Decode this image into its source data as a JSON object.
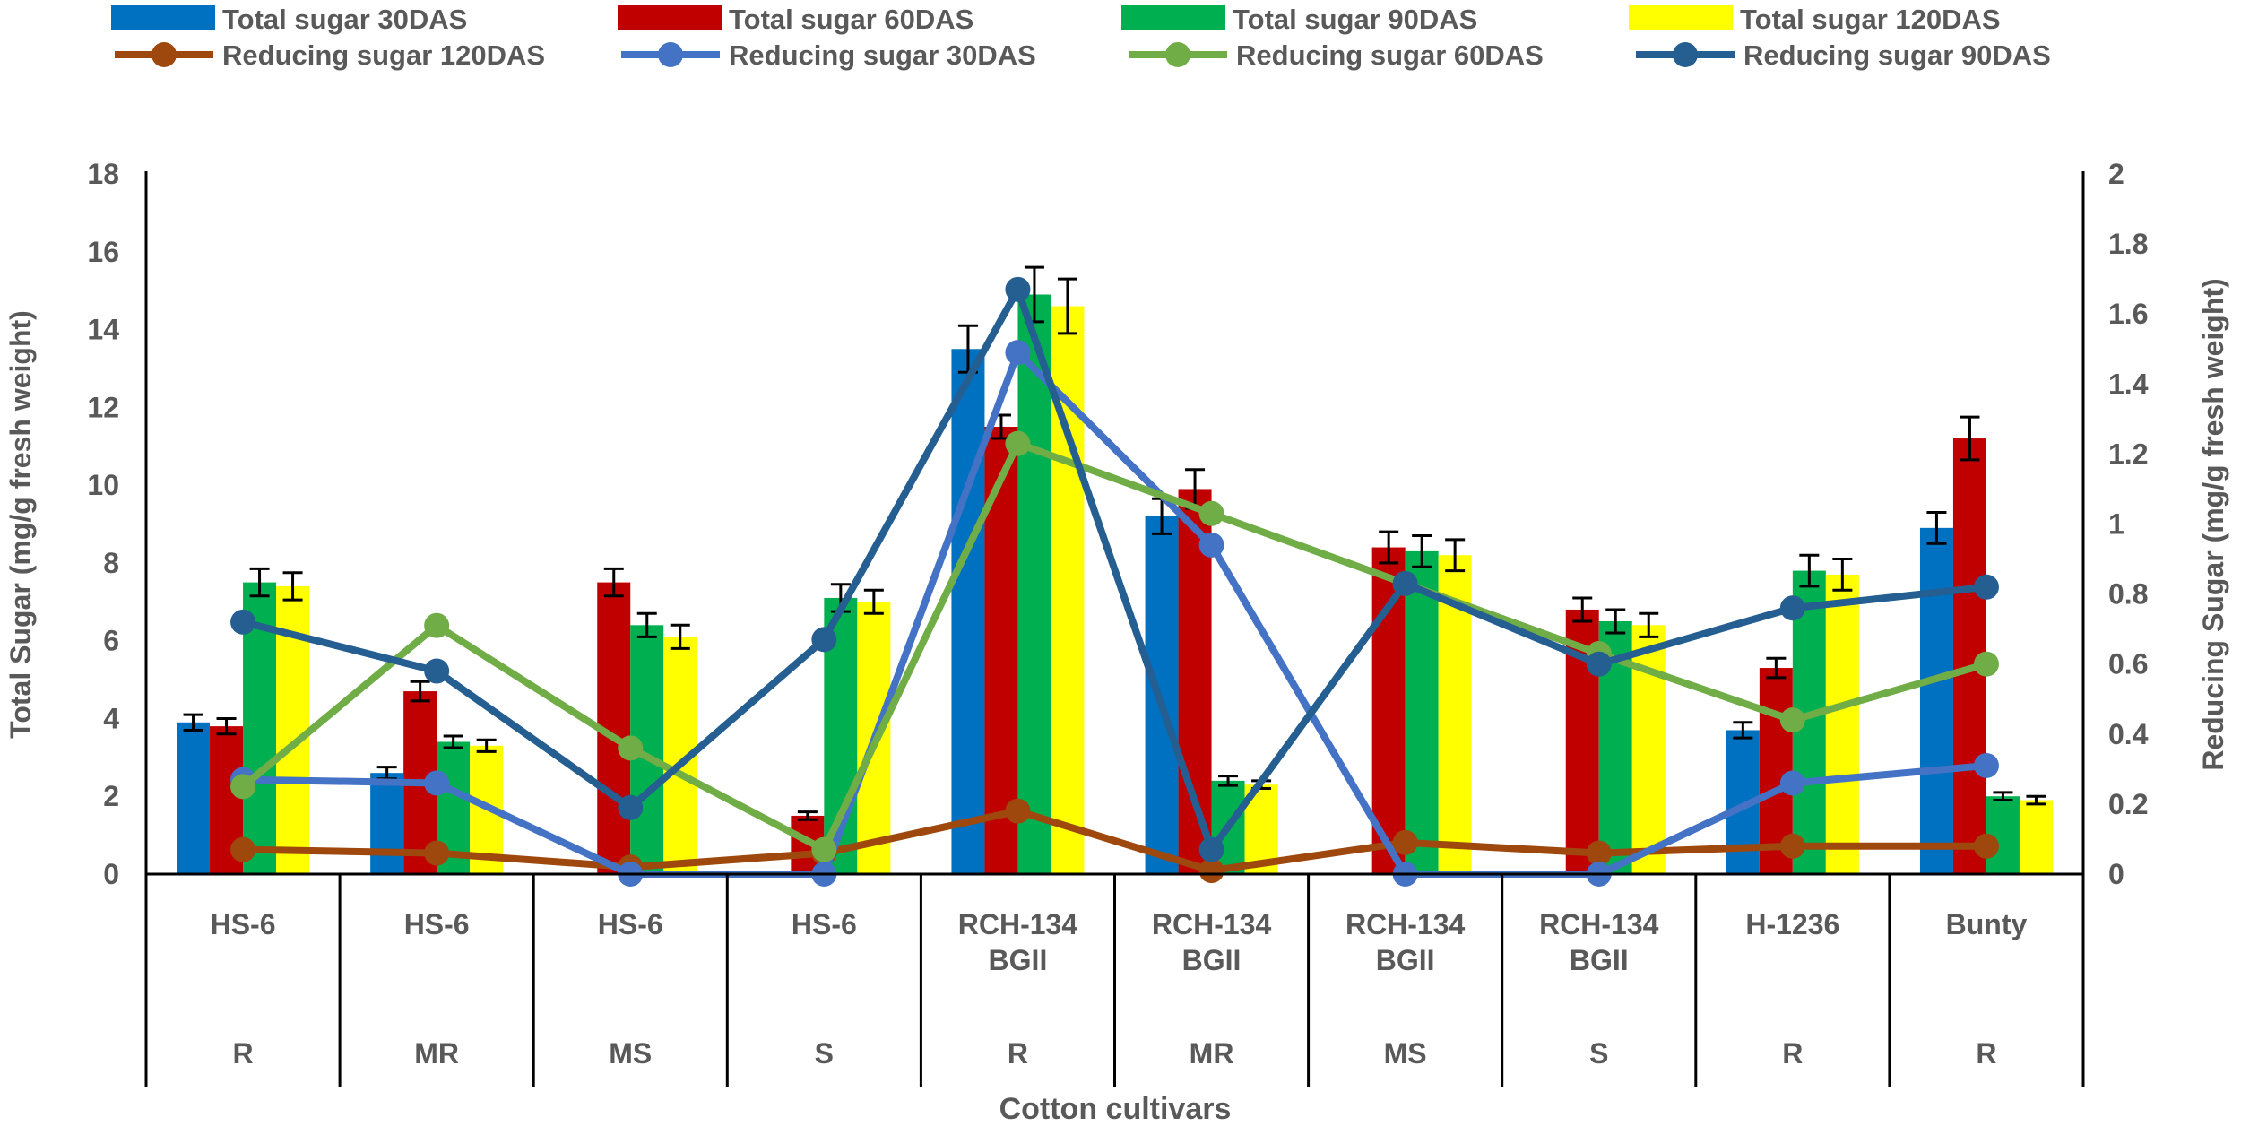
{
  "chart_data": {
    "type": "bar+line",
    "xlabel": "Cotton cultivars",
    "ylabel": "Total Sugar (mg/g fresh weight)",
    "y2label": "Reducing Sugar (mg/g fresh weight)",
    "ylim": [
      0,
      18
    ],
    "yticks": [
      "0",
      "2",
      "4",
      "6",
      "8",
      "10",
      "12",
      "14",
      "16",
      "18"
    ],
    "y2lim": [
      0,
      2
    ],
    "y2ticks": [
      "0",
      "0.2",
      "0.4",
      "0.6",
      "0.8",
      "1",
      "1.2",
      "1.4",
      "1.6",
      "1.8",
      "2"
    ],
    "grid": false,
    "legend_placement": "top",
    "categories": [
      {
        "name": [
          "HS-6"
        ],
        "group": "R"
      },
      {
        "name": [
          "HS-6"
        ],
        "group": "MR"
      },
      {
        "name": [
          "HS-6"
        ],
        "group": "MS"
      },
      {
        "name": [
          "HS-6"
        ],
        "group": "S"
      },
      {
        "name": [
          "RCH-134",
          "BGII"
        ],
        "group": "R"
      },
      {
        "name": [
          "RCH-134",
          "BGII"
        ],
        "group": "MR"
      },
      {
        "name": [
          "RCH-134",
          "BGII"
        ],
        "group": "MS"
      },
      {
        "name": [
          "RCH-134",
          "BGII"
        ],
        "group": "S"
      },
      {
        "name": [
          "H-1236"
        ],
        "group": "R"
      },
      {
        "name": [
          "Bunty"
        ],
        "group": "R"
      }
    ],
    "bar_series": [
      {
        "name": "Total sugar 30DAS",
        "color": "#0070C0",
        "values": [
          3.9,
          2.6,
          0,
          0,
          13.5,
          9.2,
          0,
          0,
          3.7,
          8.9
        ],
        "errors": [
          0.2,
          0.15,
          0,
          0,
          0.6,
          0.45,
          0,
          0,
          0.2,
          0.4
        ]
      },
      {
        "name": "Total sugar 60DAS",
        "color": "#C00000",
        "values": [
          3.8,
          4.7,
          7.5,
          1.5,
          11.5,
          9.9,
          8.4,
          6.8,
          5.3,
          11.2
        ],
        "errors": [
          0.2,
          0.25,
          0.35,
          0.1,
          0.3,
          0.5,
          0.4,
          0.3,
          0.25,
          0.55
        ]
      },
      {
        "name": "Total sugar 90DAS",
        "color": "#00B050",
        "values": [
          7.5,
          3.4,
          6.4,
          7.1,
          14.9,
          2.4,
          8.3,
          6.5,
          7.8,
          2.0
        ],
        "errors": [
          0.35,
          0.15,
          0.3,
          0.35,
          0.7,
          0.12,
          0.4,
          0.3,
          0.4,
          0.1
        ]
      },
      {
        "name": "Total sugar 120DAS",
        "color": "#FFFF00",
        "values": [
          7.4,
          3.3,
          6.1,
          7.0,
          14.6,
          2.3,
          8.2,
          6.4,
          7.7,
          1.9
        ],
        "errors": [
          0.35,
          0.15,
          0.3,
          0.3,
          0.7,
          0.1,
          0.4,
          0.3,
          0.4,
          0.1
        ]
      }
    ],
    "line_series": [
      {
        "name": "Reducing sugar 120DAS",
        "color": "#9E480E",
        "values": [
          0.07,
          0.06,
          0.02,
          0.06,
          0.18,
          0.01,
          0.09,
          0.06,
          0.08,
          0.08
        ]
      },
      {
        "name": "Reducing sugar 30DAS",
        "color": "#4472C4",
        "values": [
          0.27,
          0.26,
          0.0,
          0.0,
          1.49,
          0.94,
          0.0,
          0.0,
          0.26,
          0.31
        ]
      },
      {
        "name": "Reducing sugar 60DAS",
        "color": "#70AD47",
        "values": [
          0.25,
          0.71,
          0.36,
          0.07,
          1.23,
          1.03,
          0.83,
          0.63,
          0.44,
          0.6
        ]
      },
      {
        "name": "Reducing sugar 90DAS",
        "color": "#255E91",
        "values": [
          0.72,
          0.58,
          0.19,
          0.67,
          1.67,
          0.07,
          0.83,
          0.6,
          0.76,
          0.82
        ]
      }
    ]
  }
}
